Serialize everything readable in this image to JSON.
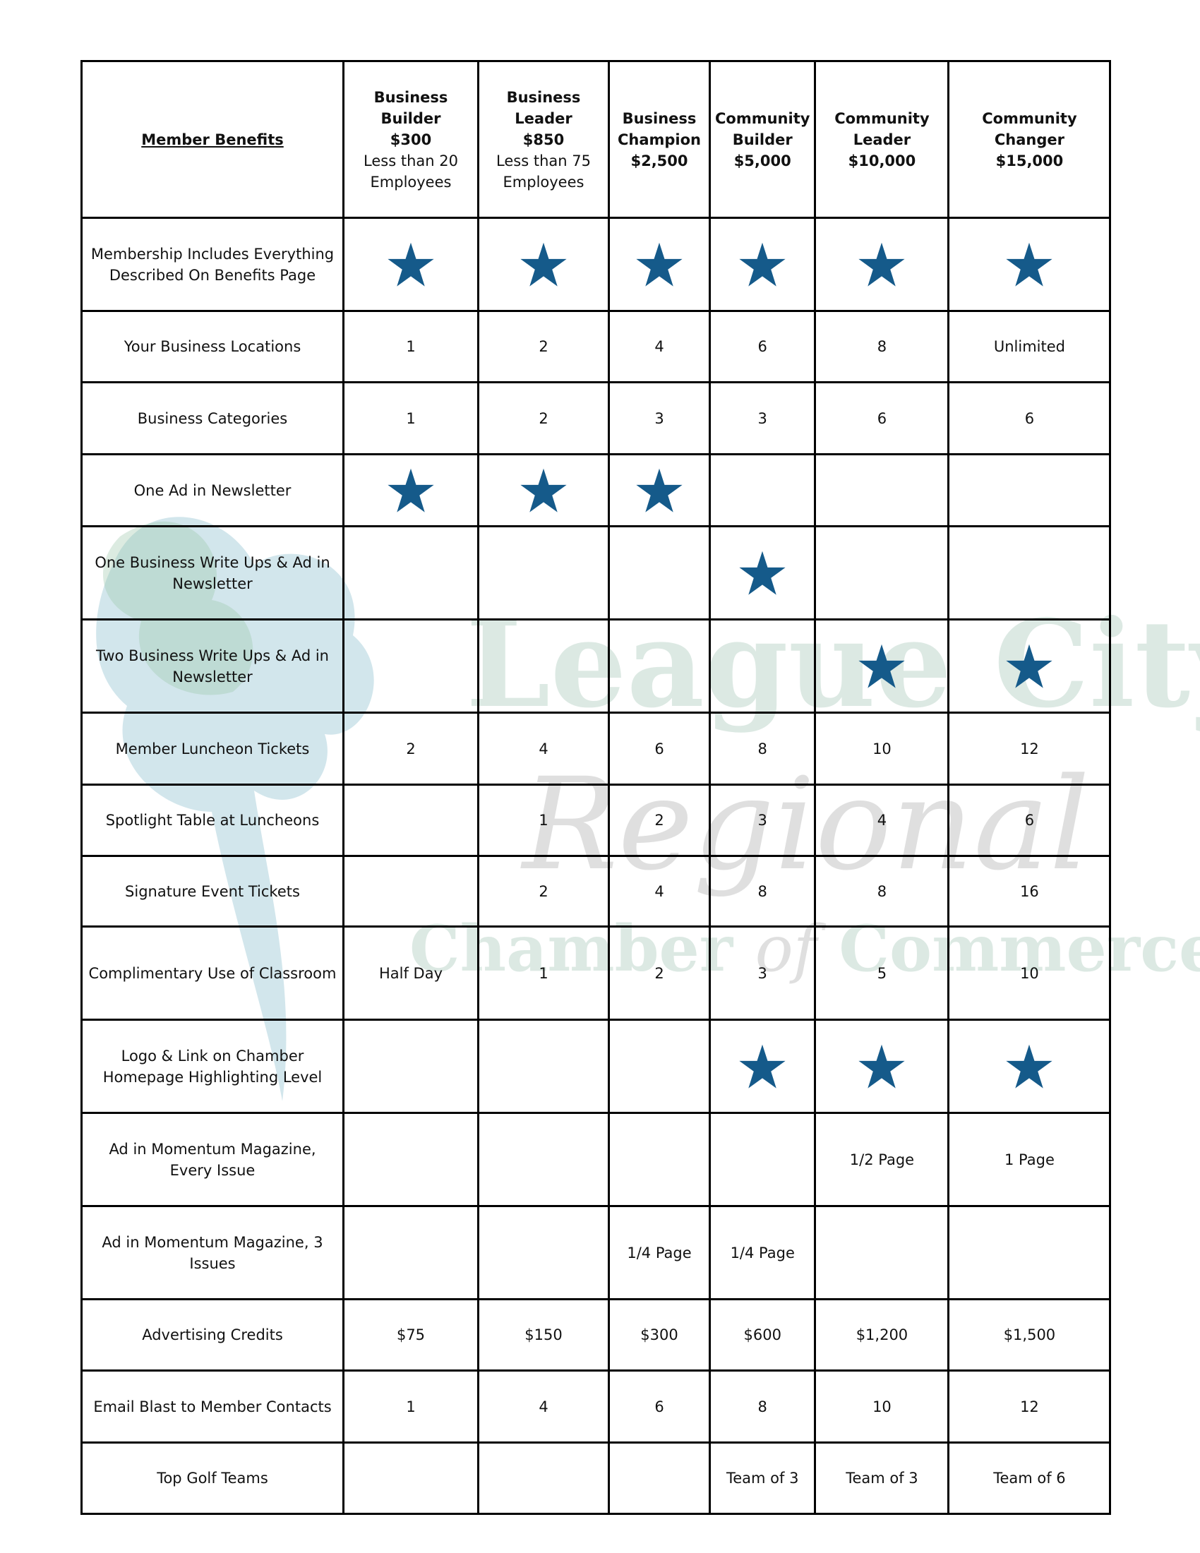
{
  "watermark": {
    "line1": "League City",
    "line2": "Regional",
    "line3a": "Chamber",
    "line3b": "of",
    "line3c": "Commerce"
  },
  "star_color": "#155a8a",
  "header": {
    "label": "Member Benefits",
    "tiers": [
      {
        "name1": "Business",
        "name2": "Builder",
        "price": "$300",
        "note1": "Less than 20",
        "note2": "Employees"
      },
      {
        "name1": "Business",
        "name2": "Leader",
        "price": "$850",
        "note1": "Less than 75",
        "note2": "Employees"
      },
      {
        "name1": "Business",
        "name2": "Champion",
        "price": "$2,500"
      },
      {
        "name1": "Community",
        "name2": "Builder",
        "price": "$5,000"
      },
      {
        "name1": "Community",
        "name2": "Leader",
        "price": "$10,000"
      },
      {
        "name1": "Community",
        "name2": "Changer",
        "price": "$15,000"
      }
    ]
  },
  "rows": [
    {
      "label": "Membership Includes Everything Described On Benefits Page",
      "cells": [
        "star",
        "star",
        "star",
        "star",
        "star",
        "star"
      ]
    },
    {
      "label": "Your Business Locations",
      "cells": [
        "1",
        "2",
        "4",
        "6",
        "8",
        "Unlimited"
      ]
    },
    {
      "label": "Business Categories",
      "cells": [
        "1",
        "2",
        "3",
        "3",
        "6",
        "6"
      ]
    },
    {
      "label": "One Ad in Newsletter",
      "cells": [
        "star",
        "star",
        "star",
        "",
        "",
        ""
      ]
    },
    {
      "label": "One Business Write Ups & Ad in Newsletter",
      "cells": [
        "",
        "",
        "",
        "star",
        "",
        ""
      ]
    },
    {
      "label": "Two Business Write Ups & Ad in Newsletter",
      "cells": [
        "",
        "",
        "",
        "",
        "star",
        "star"
      ]
    },
    {
      "label": "Member Luncheon Tickets",
      "cells": [
        "2",
        "4",
        "6",
        "8",
        "10",
        "12"
      ]
    },
    {
      "label": "Spotlight Table at Luncheons",
      "cells": [
        "",
        "1",
        "2",
        "3",
        "4",
        "6"
      ]
    },
    {
      "label": "Signature Event Tickets",
      "cells": [
        "",
        "2",
        "4",
        "8",
        "8",
        "16"
      ]
    },
    {
      "label": "Complimentary Use of Classroom",
      "cells": [
        "Half Day",
        "1",
        "2",
        "3",
        "5",
        "10"
      ]
    },
    {
      "label": "Logo & Link on Chamber Homepage Highlighting Level",
      "cells": [
        "",
        "",
        "",
        "star",
        "star",
        "star"
      ]
    },
    {
      "label": "Ad in Momentum Magazine, Every Issue",
      "cells": [
        "",
        "",
        "",
        "",
        "1/2 Page",
        "1 Page"
      ]
    },
    {
      "label": "Ad in Momentum Magazine, 3 Issues",
      "cells": [
        "",
        "",
        "1/4 Page",
        "1/4 Page",
        "",
        ""
      ]
    },
    {
      "label": "Advertising Credits",
      "cells": [
        "$75",
        "$150",
        "$300",
        "$600",
        "$1,200",
        "$1,500"
      ]
    },
    {
      "label": "Email Blast to Member Contacts",
      "cells": [
        "1",
        "4",
        "6",
        "8",
        "10",
        "12"
      ]
    },
    {
      "label": "Top Golf Teams",
      "cells": [
        "",
        "",
        "",
        "Team of 3",
        "Team of 3",
        "Team of 6"
      ]
    }
  ]
}
